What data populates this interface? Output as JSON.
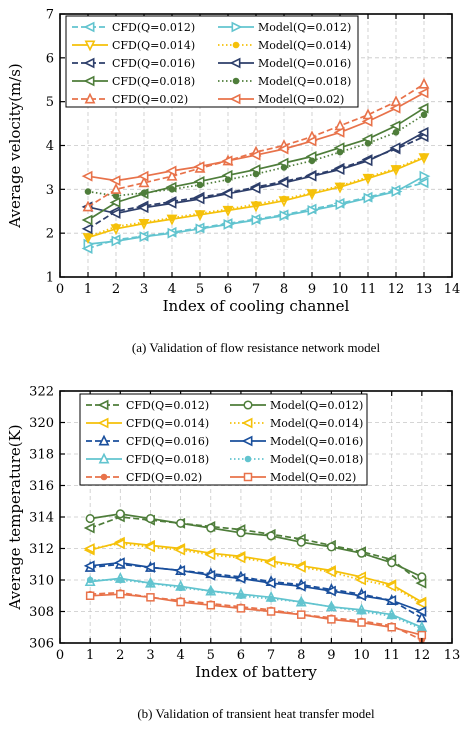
{
  "chart_data": [
    {
      "type": "line",
      "caption": "(a) Validation of flow resistance network model",
      "xlabel": "Index of cooling channel",
      "ylabel": "Average velocity(m/s)",
      "xlim": [
        0,
        14
      ],
      "ylim": [
        1,
        7
      ],
      "xticks": [
        0,
        1,
        2,
        3,
        4,
        5,
        6,
        7,
        8,
        9,
        10,
        11,
        12,
        13,
        14
      ],
      "yticks": [
        1,
        2,
        3,
        4,
        5,
        6,
        7
      ],
      "grid": true,
      "legend": "top-left, 2 columns",
      "x": [
        1,
        2,
        3,
        4,
        5,
        6,
        7,
        8,
        9,
        10,
        11,
        12,
        13
      ],
      "series": [
        {
          "name": "CFD(Q=0.012)",
          "color": "#62c4cf",
          "style": "dashed",
          "marker": "triangle-left",
          "values": [
            1.65,
            1.85,
            1.93,
            2.02,
            2.12,
            2.22,
            2.32,
            2.42,
            2.55,
            2.68,
            2.82,
            2.98,
            3.15
          ]
        },
        {
          "name": "Model(Q=0.012)",
          "color": "#62c4cf",
          "style": "solid",
          "marker": "triangle-right",
          "values": [
            1.75,
            1.82,
            1.92,
            2.0,
            2.1,
            2.2,
            2.3,
            2.4,
            2.52,
            2.65,
            2.8,
            2.95,
            3.3
          ]
        },
        {
          "name": "CFD(Q=0.014)",
          "color": "#f5c10a",
          "style": "solid",
          "marker": "triangle-down",
          "values": [
            1.9,
            2.1,
            2.22,
            2.32,
            2.42,
            2.52,
            2.62,
            2.74,
            2.9,
            3.05,
            3.25,
            3.45,
            3.72
          ]
        },
        {
          "name": "Model(Q=0.014)",
          "color": "#f5c10a",
          "style": "dotted",
          "marker": "dot",
          "values": [
            1.92,
            2.15,
            2.25,
            2.35,
            2.45,
            2.55,
            2.66,
            2.78,
            2.92,
            3.08,
            3.28,
            3.48,
            3.75
          ]
        },
        {
          "name": "CFD(Q=0.016)",
          "color": "#2d3e6a",
          "style": "dashed",
          "marker": "triangle-left",
          "values": [
            2.1,
            2.5,
            2.62,
            2.72,
            2.82,
            2.92,
            3.05,
            3.18,
            3.32,
            3.48,
            3.68,
            3.92,
            4.2
          ]
        },
        {
          "name": "Model(Q=0.016)",
          "color": "#2d3e6a",
          "style": "solid",
          "marker": "triangle-left",
          "values": [
            2.6,
            2.45,
            2.58,
            2.68,
            2.78,
            2.9,
            3.02,
            3.15,
            3.3,
            3.45,
            3.65,
            3.95,
            4.3
          ]
        },
        {
          "name": "CFD(Q=0.018)",
          "color": "#4e7d3a",
          "style": "solid",
          "marker": "triangle-left",
          "values": [
            2.3,
            2.7,
            2.9,
            3.05,
            3.18,
            3.32,
            3.45,
            3.6,
            3.75,
            3.95,
            4.15,
            4.45,
            4.85
          ]
        },
        {
          "name": "Model(Q=0.018)",
          "color": "#4e7d3a",
          "style": "dotted",
          "marker": "dot",
          "values": [
            2.95,
            2.85,
            2.92,
            3.0,
            3.1,
            3.22,
            3.35,
            3.5,
            3.65,
            3.85,
            4.05,
            4.3,
            4.7
          ]
        },
        {
          "name": "CFD(Q=0.02)",
          "color": "#e8724a",
          "style": "dashed",
          "marker": "triangle-up",
          "values": [
            2.6,
            3.0,
            3.15,
            3.3,
            3.48,
            3.65,
            3.85,
            4.0,
            4.2,
            4.45,
            4.7,
            5.0,
            5.4
          ]
        },
        {
          "name": "Model(Q=0.02)",
          "color": "#e8724a",
          "style": "solid",
          "marker": "triangle-left",
          "values": [
            3.3,
            3.2,
            3.3,
            3.42,
            3.52,
            3.65,
            3.78,
            3.92,
            4.1,
            4.3,
            4.55,
            4.85,
            5.2
          ]
        }
      ]
    },
    {
      "type": "line",
      "caption": "(b) Validation of transient heat transfer model",
      "xlabel": "Index of battery",
      "ylabel": "Average temperature(K)",
      "xlim": [
        0,
        13
      ],
      "ylim": [
        306,
        322
      ],
      "xticks": [
        0,
        1,
        2,
        3,
        4,
        5,
        6,
        7,
        8,
        9,
        10,
        11,
        12,
        13
      ],
      "yticks": [
        306,
        308,
        310,
        312,
        314,
        316,
        318,
        320,
        322
      ],
      "grid": true,
      "legend": "top, 2 columns",
      "x": [
        1,
        2,
        3,
        4,
        5,
        6,
        7,
        8,
        9,
        10,
        11,
        12
      ],
      "series": [
        {
          "name": "CFD(Q=0.012)",
          "color": "#4e7d3a",
          "style": "dashed",
          "marker": "triangle-left",
          "values": [
            313.3,
            314.0,
            313.8,
            313.6,
            313.4,
            313.2,
            312.9,
            312.6,
            312.2,
            311.8,
            311.3,
            309.8
          ]
        },
        {
          "name": "Model(Q=0.012)",
          "color": "#4e7d3a",
          "style": "solid",
          "marker": "circle",
          "values": [
            313.9,
            314.2,
            313.9,
            313.6,
            313.3,
            313.0,
            312.8,
            312.4,
            312.1,
            311.7,
            311.1,
            310.2
          ]
        },
        {
          "name": "CFD(Q=0.014)",
          "color": "#f5c10a",
          "style": "solid",
          "marker": "triangle-left",
          "values": [
            311.9,
            312.4,
            312.2,
            312.0,
            311.7,
            311.5,
            311.2,
            310.9,
            310.6,
            310.2,
            309.7,
            308.6
          ]
        },
        {
          "name": "Model(Q=0.014)",
          "color": "#f5c10a",
          "style": "dotted",
          "marker": "triangle-left",
          "values": [
            312.0,
            312.3,
            312.1,
            311.9,
            311.6,
            311.4,
            311.1,
            310.8,
            310.5,
            310.0,
            309.6,
            308.5
          ]
        },
        {
          "name": "CFD(Q=0.016)",
          "color": "#1a4f9c",
          "style": "dashed",
          "marker": "triangle-up",
          "values": [
            310.8,
            311.0,
            310.8,
            310.6,
            310.4,
            310.2,
            309.9,
            309.7,
            309.4,
            309.1,
            308.7,
            307.6
          ]
        },
        {
          "name": "Model(Q=0.016)",
          "color": "#1a4f9c",
          "style": "solid",
          "marker": "triangle-left",
          "values": [
            310.9,
            311.1,
            310.8,
            310.6,
            310.3,
            310.1,
            309.8,
            309.6,
            309.3,
            309.0,
            308.7,
            308.0
          ]
        },
        {
          "name": "CFD(Q=0.018)",
          "color": "#62c4cf",
          "style": "solid",
          "marker": "triangle-up",
          "values": [
            309.9,
            310.1,
            309.8,
            309.6,
            309.3,
            309.1,
            308.9,
            308.6,
            308.3,
            308.1,
            307.8,
            307.0
          ]
        },
        {
          "name": "Model(Q=0.018)",
          "color": "#62c4cf",
          "style": "dotted",
          "marker": "dot",
          "values": [
            310.0,
            310.0,
            309.8,
            309.5,
            309.3,
            309.0,
            308.8,
            308.6,
            308.3,
            308.0,
            307.7,
            306.9
          ]
        },
        {
          "name": "CFD(Q=0.02)",
          "color": "#e8724a",
          "style": "dashed",
          "marker": "dot",
          "values": [
            309.1,
            309.2,
            308.9,
            308.7,
            308.5,
            308.3,
            308.1,
            307.8,
            307.6,
            307.4,
            307.1,
            306.2
          ]
        },
        {
          "name": "Model(Q=0.02)",
          "color": "#e8724a",
          "style": "solid",
          "marker": "square",
          "values": [
            309.0,
            309.1,
            308.9,
            308.6,
            308.4,
            308.2,
            308.0,
            307.8,
            307.5,
            307.3,
            307.0,
            306.5
          ]
        }
      ]
    }
  ]
}
